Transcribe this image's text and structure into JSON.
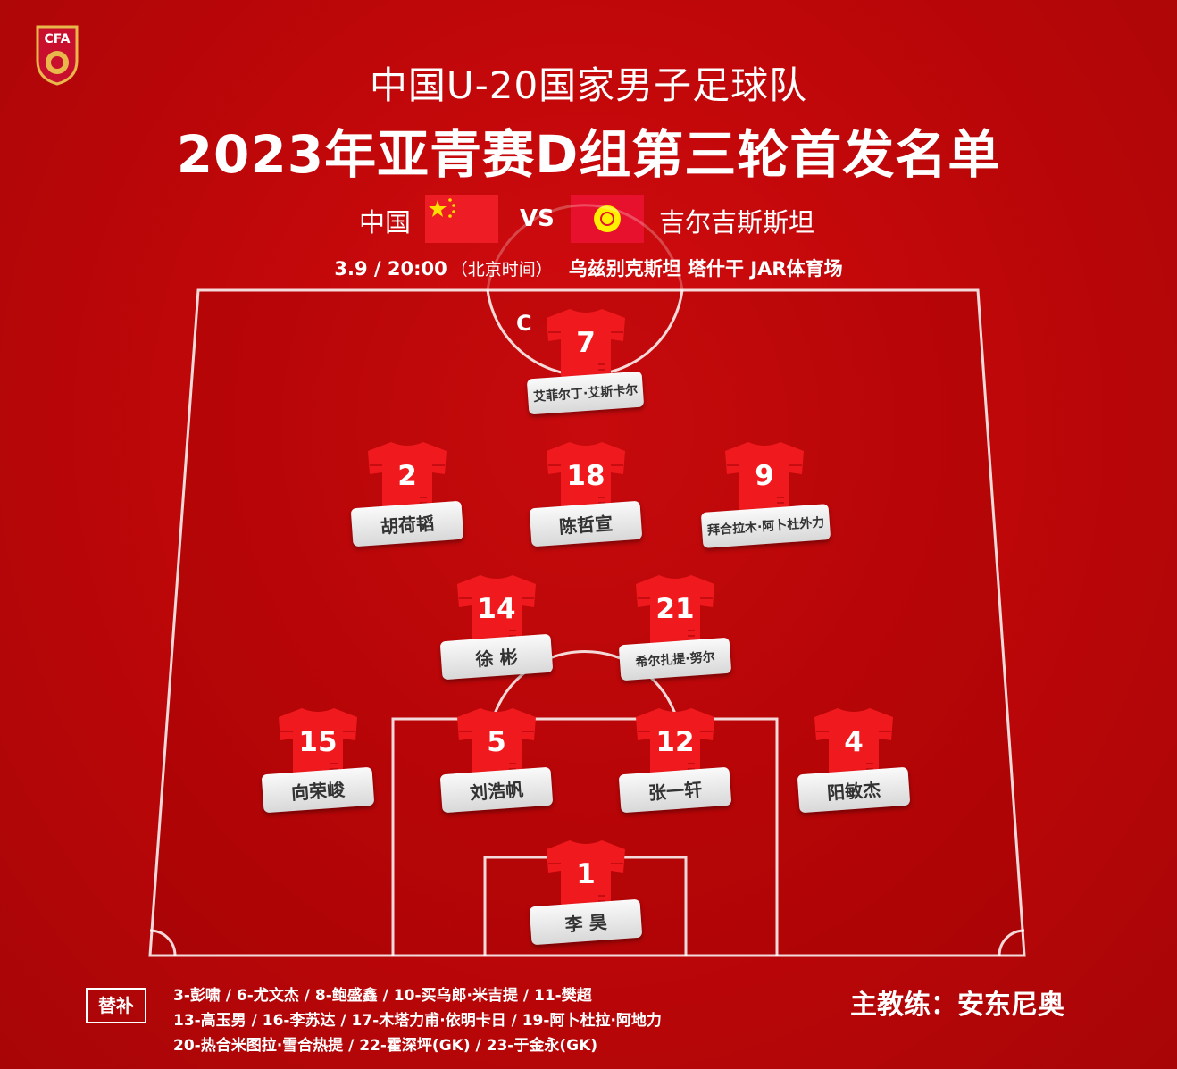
{
  "header": {
    "title_line1": "中国U-20国家男子足球队",
    "title_line2": "2023年亚青赛D组第三轮首发名单",
    "logo_text": "CFA"
  },
  "match": {
    "home": "中国",
    "vs": "VS",
    "away": "吉尔吉斯斯坦",
    "date_time": "3.9 / 20:00",
    "timezone": "（北京时间）",
    "venue": "乌兹别克斯坦 塔什干 JAR体育场"
  },
  "captain_mark": "C",
  "players": [
    {
      "number": "7",
      "name": "艾菲尔丁·艾斯卡尔",
      "captain": true
    },
    {
      "number": "2",
      "name": "胡荷韬"
    },
    {
      "number": "18",
      "name": "陈哲宣"
    },
    {
      "number": "9",
      "name": "拜合拉木·阿卜杜外力"
    },
    {
      "number": "14",
      "name": "徐 彬"
    },
    {
      "number": "21",
      "name": "希尔扎提·努尔"
    },
    {
      "number": "15",
      "name": "向荣峻"
    },
    {
      "number": "5",
      "name": "刘浩帆"
    },
    {
      "number": "12",
      "name": "张一轩"
    },
    {
      "number": "4",
      "name": "阳敏杰"
    },
    {
      "number": "1",
      "name": "李 昊"
    }
  ],
  "subs": {
    "label": "替补",
    "lines": [
      "3-彭啸 / 6-尤文杰 / 8-鲍盛鑫 / 10-买乌郎·米吉提 / 11-樊超",
      "13-高玉男 / 16-李苏达 / 17-木塔力甫·依明卡日 / 19-阿卜杜拉·阿地力",
      "20-热合米图拉·雪合热提 / 22-霍深坪(GK) / 23-于金永(GK)"
    ]
  },
  "coach": "主教练：安东尼奥",
  "colors": {
    "background": "#c00709",
    "shirt": "#f01a1e",
    "label": "#eeeeee"
  }
}
